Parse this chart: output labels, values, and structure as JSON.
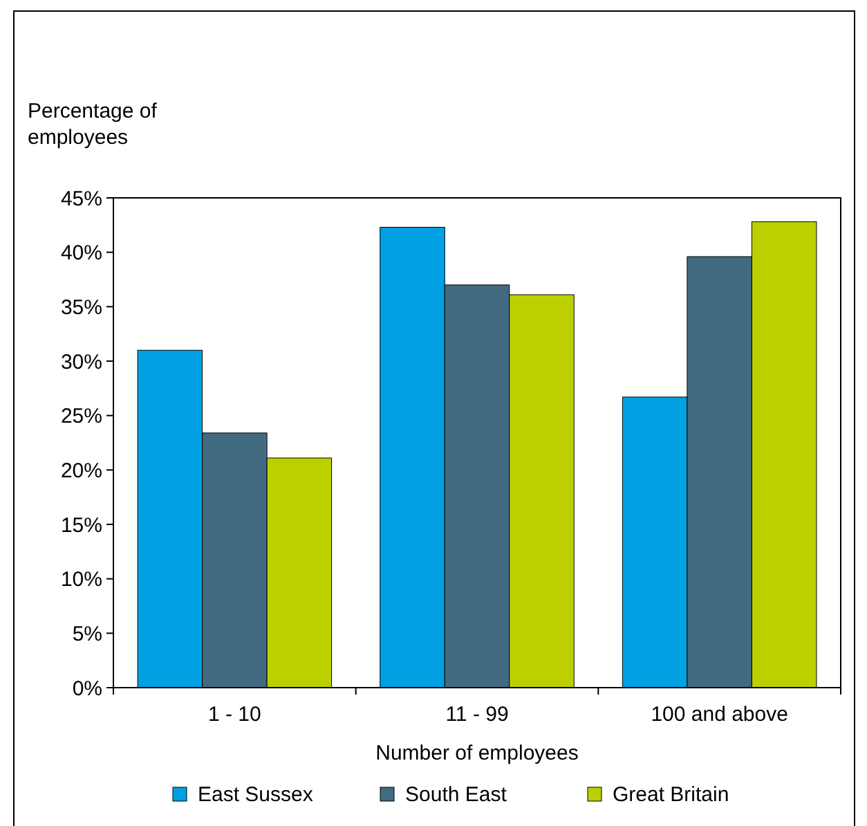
{
  "chart_data": {
    "type": "bar",
    "ylabel": "Percentage of\nemployees",
    "xlabel": "Number of employees",
    "categories": [
      "1 - 10",
      "11 - 99",
      "100 and above"
    ],
    "series": [
      {
        "name": "East Sussex",
        "color": "#00a0e3",
        "values": [
          31,
          42.3,
          26.7
        ]
      },
      {
        "name": "South East",
        "color": "#426a80",
        "values": [
          23.4,
          37,
          39.6
        ]
      },
      {
        "name": "Great Britain",
        "color": "#bcd000",
        "values": [
          21.1,
          36.1,
          42.8
        ]
      }
    ],
    "ylim": [
      0,
      45
    ],
    "yticks": [
      {
        "value": 0,
        "label": "0%"
      },
      {
        "value": 5,
        "label": "5%"
      },
      {
        "value": 10,
        "label": "10%"
      },
      {
        "value": 15,
        "label": "15%"
      },
      {
        "value": 20,
        "label": "20%"
      },
      {
        "value": 25,
        "label": "25%"
      },
      {
        "value": 30,
        "label": "30%"
      },
      {
        "value": 35,
        "label": "35%"
      },
      {
        "value": 40,
        "label": "40%"
      },
      {
        "value": 45,
        "label": "45%"
      }
    ],
    "grid": false,
    "legend": "bottom"
  }
}
